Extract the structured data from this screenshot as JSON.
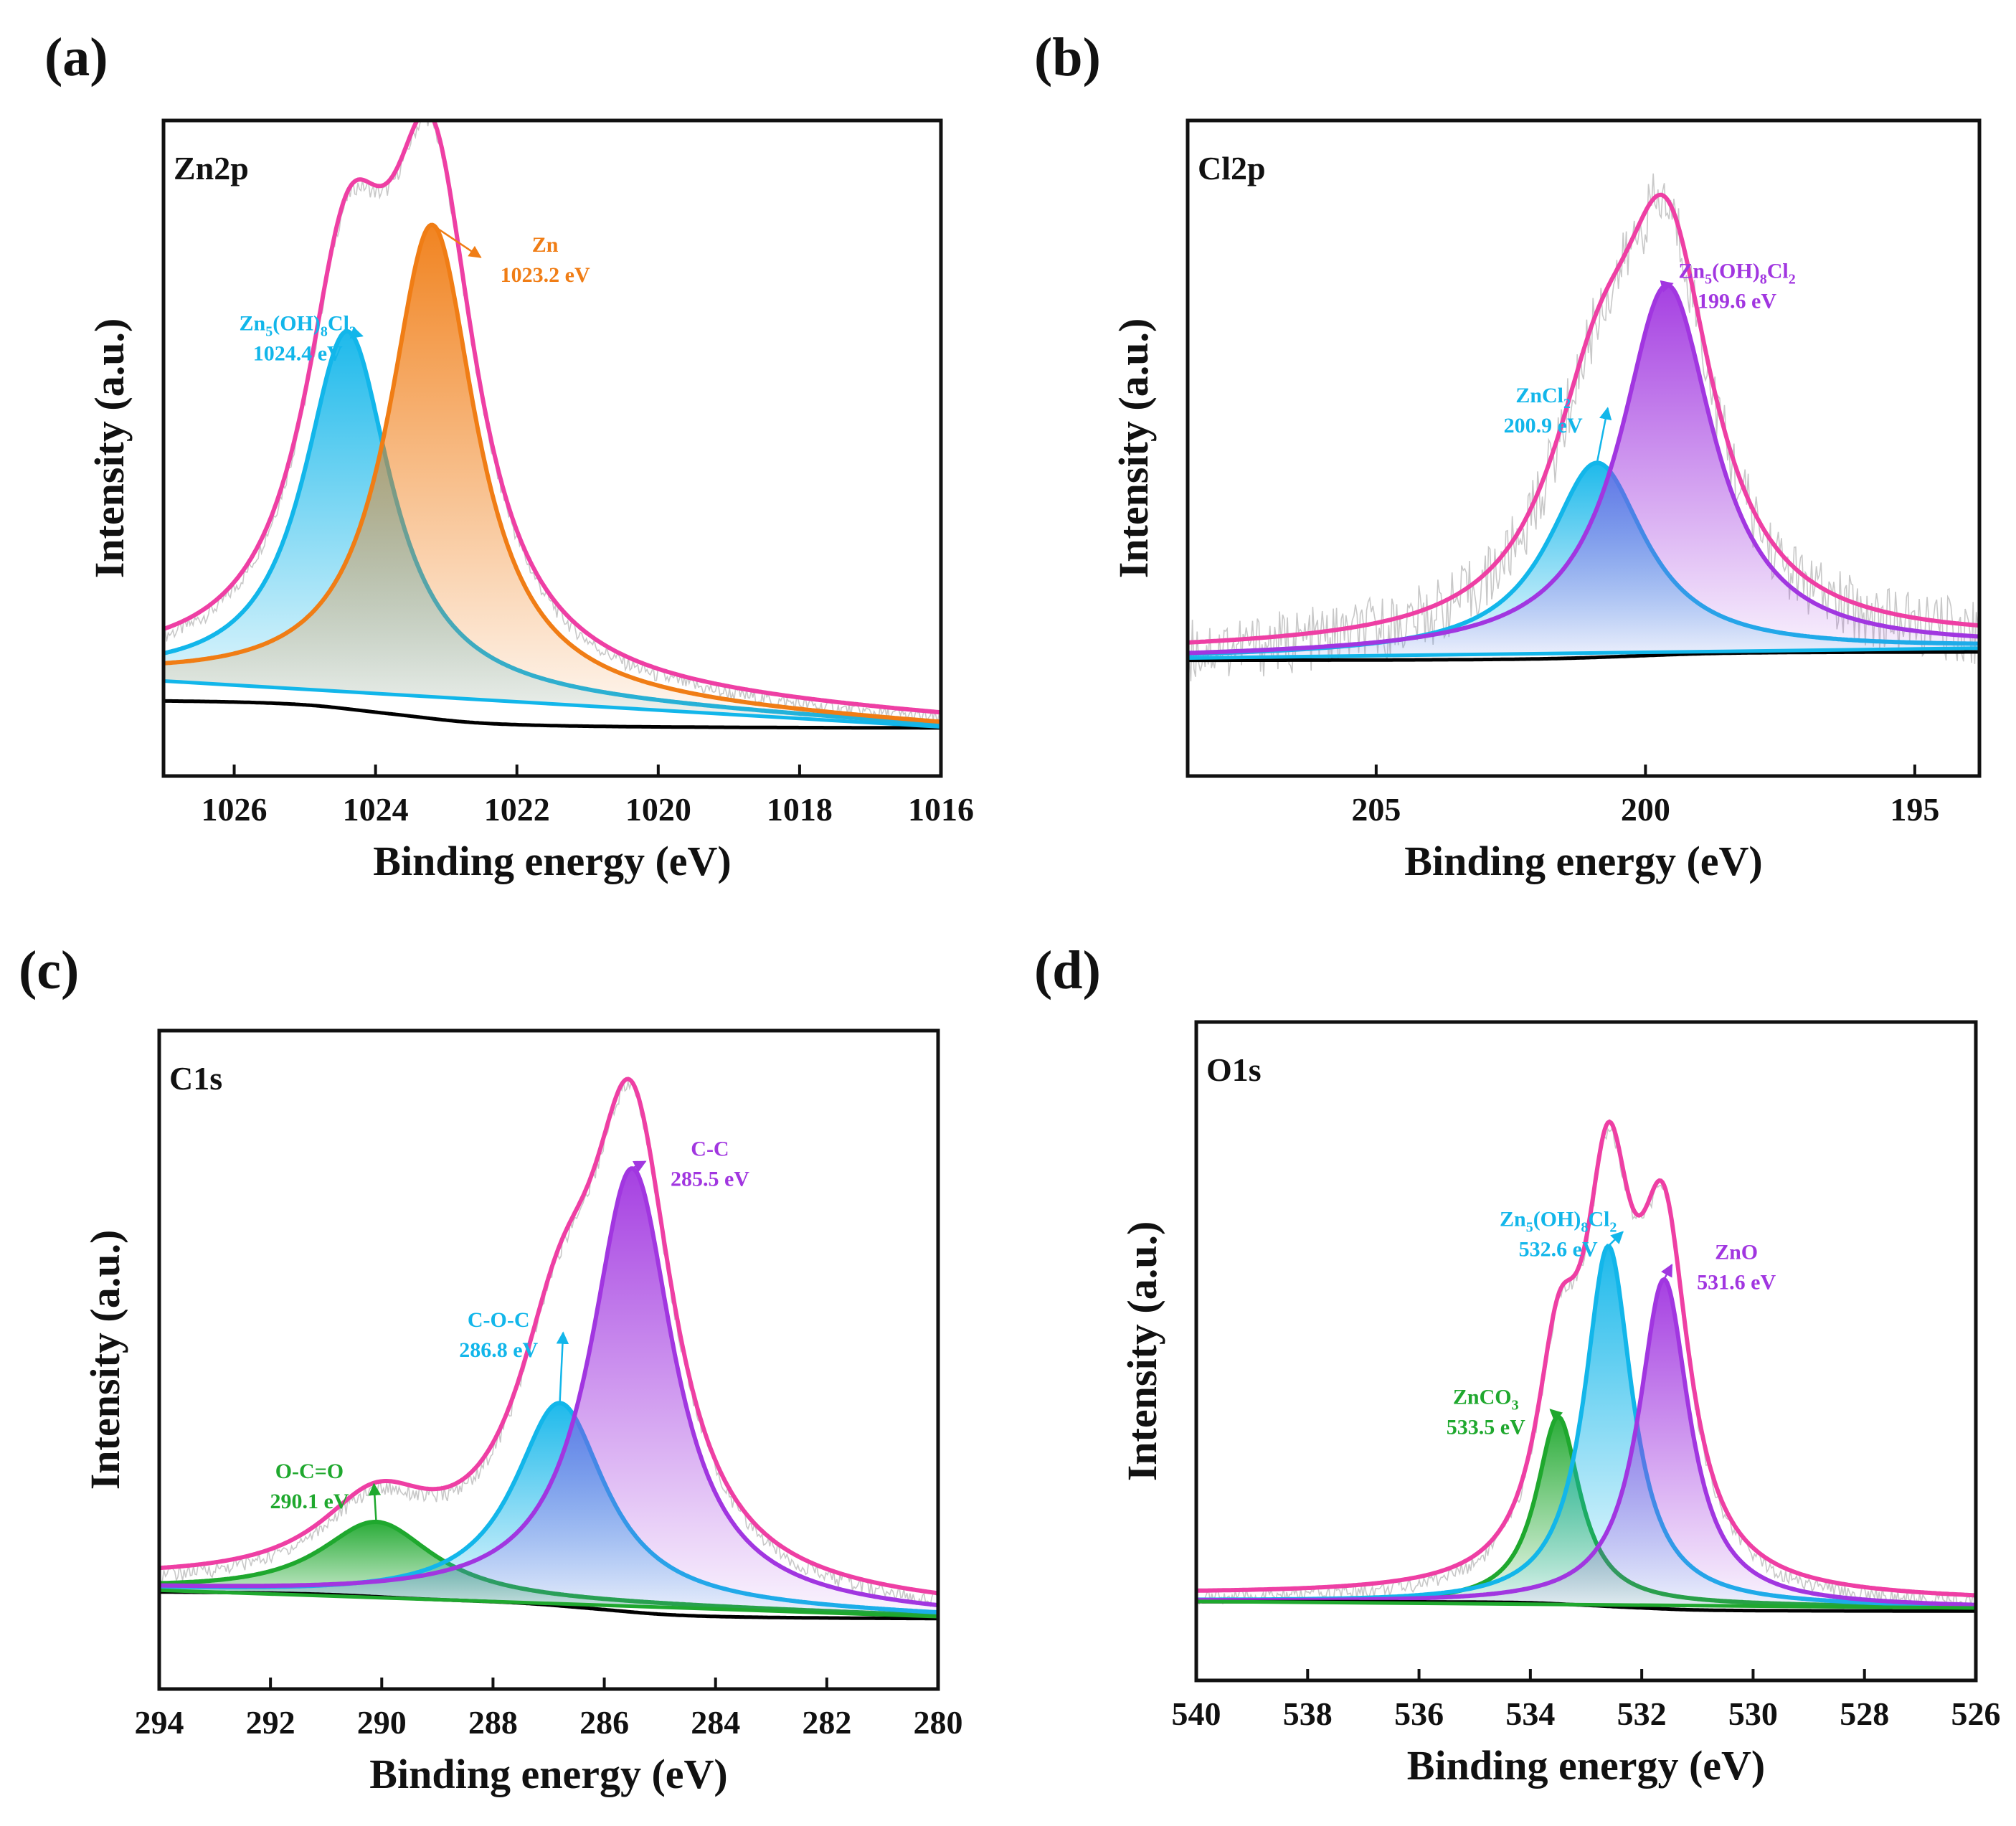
{
  "chart_data": [
    {
      "id": "a",
      "panel_label": "(a)",
      "type": "line",
      "subtype": "xps-peak-fit",
      "title": "Zn2p",
      "xlabel": "Binding energy (eV)",
      "ylabel": "Intensity (a.u.)",
      "xlim": [
        1027.0,
        1016.0
      ],
      "ylim": [
        0.0,
        1.0
      ],
      "xticks": [
        1026,
        1024,
        1022,
        1020,
        1018,
        1016
      ],
      "x_reversed": true,
      "series": [
        {
          "name": "Zn5(OH)8Cl2",
          "formula": [
            "Zn",
            "5",
            "(OH)",
            "8",
            "Cl",
            "2"
          ],
          "center": 1024.4,
          "height": 0.55,
          "width": 0.75,
          "color": "#12b6ea",
          "fill": true,
          "label": "Zn5(OH)8Cl2",
          "label_value": "1024.4 eV",
          "label_at": [
            1025.1,
            0.68
          ]
        },
        {
          "name": "Zn",
          "formula": [
            "Zn"
          ],
          "center": 1023.2,
          "height": 0.72,
          "width": 0.75,
          "color": "#f07d15",
          "fill": true,
          "label": "Zn",
          "label_value": "1023.2 eV",
          "label_at": [
            1021.6,
            0.8
          ]
        },
        {
          "name": "Background",
          "type": "baseline",
          "color": "#12b6ea",
          "left": 0.145,
          "right": 0.075
        },
        {
          "name": "Shirley background",
          "type": "baseline",
          "color": "#000000",
          "left": 0.118,
          "right": 0.072
        },
        {
          "name": "Envelope",
          "type": "envelope",
          "color": "#ee3fa4"
        },
        {
          "name": "Raw data",
          "type": "raw",
          "color": "#c8c8c8"
        }
      ]
    },
    {
      "id": "b",
      "panel_label": "(b)",
      "type": "line",
      "subtype": "xps-peak-fit",
      "title": "Cl2p",
      "xlabel": "Binding energy (eV)",
      "ylabel": "Intensity (a.u.)",
      "xlim": [
        208.5,
        193.8
      ],
      "ylim": [
        0.0,
        1.0
      ],
      "xticks": [
        205,
        200,
        195
      ],
      "x_reversed": true,
      "series": [
        {
          "name": "ZnCl2",
          "formula": [
            "ZnCl",
            "2"
          ],
          "center": 200.9,
          "height": 0.29,
          "width": 1.1,
          "color": "#12b6ea",
          "fill": true,
          "label": "ZnCl2",
          "label_value": "200.9 eV",
          "label_at": [
            201.9,
            0.57
          ]
        },
        {
          "name": "Zn5(OH)8Cl2",
          "formula": [
            "Zn",
            "5",
            "(OH)",
            "8",
            "Cl",
            "2"
          ],
          "center": 199.6,
          "height": 0.56,
          "width": 1.05,
          "color": "#a136e0",
          "fill": true,
          "label": "Zn5(OH)8Cl2",
          "label_value": "199.6 eV",
          "label_at": [
            198.3,
            0.76
          ]
        },
        {
          "name": "Background",
          "type": "baseline",
          "color": "#12b6ea",
          "left": 0.18,
          "right": 0.195
        },
        {
          "name": "Shirley background",
          "type": "baseline",
          "color": "#000000",
          "left": 0.176,
          "right": 0.19
        },
        {
          "name": "Envelope",
          "type": "envelope",
          "color": "#ee3fa4"
        },
        {
          "name": "Raw data",
          "type": "raw",
          "color": "#c8c8c8"
        }
      ]
    },
    {
      "id": "c",
      "panel_label": "(c)",
      "type": "line",
      "subtype": "xps-peak-fit",
      "title": "C1s",
      "xlabel": "Binding energy (eV)",
      "ylabel": "Intensity (a.u.)",
      "xlim": [
        294.0,
        280.0
      ],
      "ylim": [
        0.0,
        1.0
      ],
      "xticks": [
        294,
        292,
        290,
        288,
        286,
        284,
        282,
        280
      ],
      "x_reversed": true,
      "series": [
        {
          "name": "O-C=O",
          "formula": [
            "O-C=O"
          ],
          "center": 290.1,
          "height": 0.115,
          "width": 1.25,
          "color": "#1fa82e",
          "fill": true,
          "label": "O-C=O",
          "label_value": "290.1 eV",
          "label_at": [
            291.3,
            0.32
          ]
        },
        {
          "name": "C-O-C",
          "formula": [
            "C-O-C"
          ],
          "center": 286.8,
          "height": 0.305,
          "width": 1.0,
          "color": "#12b6ea",
          "fill": true,
          "label": "C-O-C",
          "label_value": "286.8 eV",
          "label_at": [
            287.9,
            0.55
          ]
        },
        {
          "name": "C-C",
          "formula": [
            "C-C"
          ],
          "center": 285.5,
          "height": 0.665,
          "width": 0.9,
          "color": "#a136e0",
          "fill": true,
          "label": "C-C",
          "label_value": "285.5 eV",
          "label_at": [
            284.1,
            0.81
          ]
        },
        {
          "name": "Background",
          "type": "baseline",
          "color": "#1fa82e",
          "left": 0.15,
          "right": 0.11
        },
        {
          "name": "Shirley background",
          "type": "baseline",
          "color": "#000000",
          "left": 0.15,
          "right": 0.105
        },
        {
          "name": "Envelope",
          "type": "envelope",
          "color": "#ee3fa4"
        },
        {
          "name": "Raw data",
          "type": "raw",
          "color": "#c8c8c8"
        }
      ]
    },
    {
      "id": "d",
      "panel_label": "(d)",
      "type": "line",
      "subtype": "xps-peak-fit",
      "title": "O1s",
      "xlabel": "Binding energy (eV)",
      "ylabel": "Intensity (a.u.)",
      "xlim": [
        540.0,
        526.0
      ],
      "ylim": [
        0.0,
        1.0
      ],
      "xticks": [
        540,
        538,
        536,
        534,
        532,
        530,
        528,
        526
      ],
      "x_reversed": true,
      "series": [
        {
          "name": "ZnCO3",
          "formula": [
            "ZnCO",
            "3"
          ],
          "center": 533.5,
          "height": 0.285,
          "width": 0.48,
          "color": "#1fa82e",
          "fill": true,
          "label": "ZnCO3",
          "label_value": "533.5 eV",
          "label_at": [
            534.8,
            0.42
          ]
        },
        {
          "name": "Zn5(OH)8Cl2",
          "formula": [
            "Zn",
            "5",
            "(OH)",
            "8",
            "Cl",
            "2"
          ],
          "center": 532.6,
          "height": 0.545,
          "width": 0.52,
          "color": "#12b6ea",
          "fill": true,
          "label": "Zn5(OH)8Cl2",
          "label_value": "532.6 eV",
          "label_at": [
            533.5,
            0.69
          ]
        },
        {
          "name": "ZnO",
          "formula": [
            "ZnO"
          ],
          "center": 531.6,
          "height": 0.495,
          "width": 0.55,
          "color": "#a136e0",
          "fill": true,
          "label": "ZnO",
          "label_value": "531.6 eV",
          "label_at": [
            530.3,
            0.64
          ]
        },
        {
          "name": "Background",
          "type": "baseline",
          "color": "#1fa82e",
          "left": 0.12,
          "right": 0.11
        },
        {
          "name": "Shirley background",
          "type": "baseline",
          "color": "#000000",
          "left": 0.12,
          "right": 0.105
        },
        {
          "name": "Envelope",
          "type": "envelope",
          "color": "#ee3fa4"
        },
        {
          "name": "Raw data",
          "type": "raw",
          "color": "#c8c8c8"
        }
      ]
    }
  ]
}
